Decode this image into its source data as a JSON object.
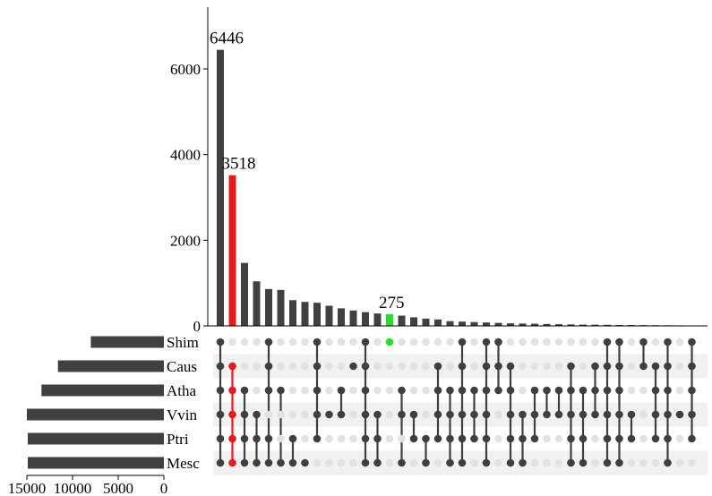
{
  "colors": {
    "bar": "#404040",
    "highlight_red": "#e8191c",
    "highlight_green": "#22e02a",
    "dot_off": "#e2e2e2",
    "dot_on": "#3f3f3f",
    "stripe": "#f1f1f1",
    "axis": "#000000"
  },
  "chart_data": {
    "type": "bar",
    "subtype": "upset",
    "title": "",
    "intersection_axis": {
      "ylim": [
        0,
        7400
      ],
      "ticks": [
        0,
        2000,
        4000,
        6000
      ],
      "tick_labels": [
        "0",
        "2000",
        "4000",
        "6000"
      ]
    },
    "set_size_axis": {
      "xlim": [
        0,
        15000
      ],
      "ticks": [
        15000,
        10000,
        5000,
        0
      ],
      "tick_labels": [
        "15000",
        "10000",
        "5000",
        "0"
      ]
    },
    "sets": [
      {
        "name": "Shim",
        "size": 8000
      },
      {
        "name": "Caus",
        "size": 11600
      },
      {
        "name": "Atha",
        "size": 13400
      },
      {
        "name": "Vvin",
        "size": 15000
      },
      {
        "name": "Ptri",
        "size": 14900
      },
      {
        "name": "Mesc",
        "size": 14900
      }
    ],
    "intersections": [
      {
        "value": 6446,
        "sets": [
          0,
          1,
          2,
          3,
          4,
          5
        ],
        "label": "6446"
      },
      {
        "value": 3518,
        "sets": [
          1,
          2,
          3,
          4,
          5
        ],
        "label": "3518",
        "highlight": "red"
      },
      {
        "value": 1470,
        "sets": [
          2,
          3,
          4,
          5
        ]
      },
      {
        "value": 1040,
        "sets": [
          3,
          4,
          5
        ]
      },
      {
        "value": 860,
        "sets": [
          0,
          1,
          2,
          4,
          5
        ]
      },
      {
        "value": 840,
        "sets": [
          2,
          5
        ]
      },
      {
        "value": 600,
        "sets": [
          4,
          5
        ]
      },
      {
        "value": 560,
        "sets": [
          5
        ]
      },
      {
        "value": 540,
        "sets": [
          0,
          1,
          2,
          3,
          4
        ]
      },
      {
        "value": 470,
        "sets": [
          3
        ]
      },
      {
        "value": 410,
        "sets": [
          2,
          3
        ]
      },
      {
        "value": 360,
        "sets": [
          1
        ]
      },
      {
        "value": 320,
        "sets": [
          0,
          1,
          2,
          3,
          4,
          5
        ]
      },
      {
        "value": 290,
        "sets": [
          3,
          4,
          5
        ]
      },
      {
        "value": 275,
        "sets": [
          0
        ],
        "label": "275",
        "highlight": "green"
      },
      {
        "value": 240,
        "sets": [
          2,
          3,
          5
        ]
      },
      {
        "value": 200,
        "sets": [
          3,
          4
        ]
      },
      {
        "value": 170,
        "sets": [
          4,
          5
        ]
      },
      {
        "value": 150,
        "sets": [
          1,
          2,
          3,
          4
        ]
      },
      {
        "value": 110,
        "sets": [
          2,
          3,
          4,
          5
        ]
      },
      {
        "value": 100,
        "sets": [
          0,
          1,
          2,
          3,
          4,
          5
        ]
      },
      {
        "value": 90,
        "sets": [
          2,
          3,
          4
        ]
      },
      {
        "value": 80,
        "sets": [
          0,
          1,
          2,
          3,
          4,
          5
        ]
      },
      {
        "value": 70,
        "sets": [
          0,
          1,
          2
        ]
      },
      {
        "value": 60,
        "sets": [
          1,
          2,
          3,
          4,
          5
        ]
      },
      {
        "value": 55,
        "sets": [
          3,
          4,
          5
        ]
      },
      {
        "value": 50,
        "sets": [
          2,
          3,
          4
        ]
      },
      {
        "value": 45,
        "sets": [
          2,
          3
        ]
      },
      {
        "value": 40,
        "sets": [
          2,
          3
        ]
      },
      {
        "value": 35,
        "sets": [
          1,
          2,
          3,
          4,
          5
        ]
      },
      {
        "value": 30,
        "sets": [
          2,
          3,
          4,
          5
        ]
      },
      {
        "value": 28,
        "sets": [
          1,
          2,
          3
        ]
      },
      {
        "value": 25,
        "sets": [
          0,
          1,
          2,
          3,
          4,
          5
        ]
      },
      {
        "value": 22,
        "sets": [
          0,
          1,
          2,
          3,
          4,
          5
        ]
      },
      {
        "value": 20,
        "sets": [
          3,
          4
        ]
      },
      {
        "value": 18,
        "sets": [
          0,
          1
        ]
      },
      {
        "value": 16,
        "sets": [
          1,
          2,
          3,
          4
        ]
      },
      {
        "value": 14,
        "sets": [
          0,
          1,
          2,
          3,
          4,
          5
        ]
      },
      {
        "value": 12,
        "sets": [
          3
        ]
      },
      {
        "value": 10,
        "sets": [
          0,
          1,
          2,
          3,
          4
        ]
      }
    ]
  }
}
